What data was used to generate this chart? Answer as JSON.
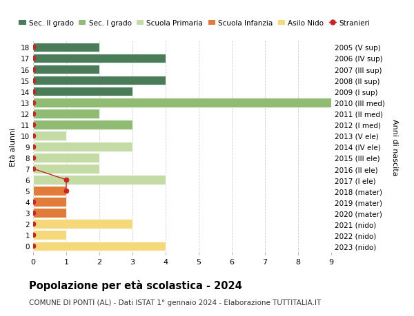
{
  "ages": [
    18,
    17,
    16,
    15,
    14,
    13,
    12,
    11,
    10,
    9,
    8,
    7,
    6,
    5,
    4,
    3,
    2,
    1,
    0
  ],
  "years_labels": [
    "2005 (V sup)",
    "2006 (IV sup)",
    "2007 (III sup)",
    "2008 (II sup)",
    "2009 (I sup)",
    "2010 (III med)",
    "2011 (II med)",
    "2012 (I med)",
    "2013 (V ele)",
    "2014 (IV ele)",
    "2015 (III ele)",
    "2016 (II ele)",
    "2017 (I ele)",
    "2018 (mater)",
    "2019 (mater)",
    "2020 (mater)",
    "2021 (nido)",
    "2022 (nido)",
    "2023 (nido)"
  ],
  "bar_values": [
    2,
    4,
    2,
    4,
    3,
    9,
    2,
    3,
    1,
    3,
    2,
    2,
    4,
    1,
    1,
    1,
    3,
    1,
    4
  ],
  "bar_colors": [
    "#4a7c59",
    "#4a7c59",
    "#4a7c59",
    "#4a7c59",
    "#4a7c59",
    "#8fbc72",
    "#8fbc72",
    "#8fbc72",
    "#c5dba5",
    "#c5dba5",
    "#c5dba5",
    "#c5dba5",
    "#c5dba5",
    "#e07b39",
    "#e07b39",
    "#e07b39",
    "#f5d87a",
    "#f5d87a",
    "#f5d87a"
  ],
  "stranieri_line_ages": [
    7,
    6,
    5
  ],
  "stranieri_line_x": [
    0,
    1,
    1
  ],
  "dot_ages_zero": [
    18,
    17,
    16,
    15,
    14,
    13,
    12,
    11,
    10,
    9,
    8,
    7,
    4,
    3,
    2,
    1,
    0
  ],
  "dot_ages_one": [
    6,
    5
  ],
  "color_sec2": "#4a7c59",
  "color_sec1": "#8fbc72",
  "color_prim": "#c5dba5",
  "color_inf": "#e07b39",
  "color_nido": "#f5d87a",
  "color_stranieri": "#cc2222",
  "title": "Popolazione per età scolastica - 2024",
  "subtitle": "COMUNE DI PONTI (AL) - Dati ISTAT 1° gennaio 2024 - Elaborazione TUTTITALIA.IT",
  "ylabel_left": "Età alunni",
  "ylabel_right": "Anni di nascita",
  "xlim": [
    0,
    9
  ],
  "legend_labels": [
    "Sec. II grado",
    "Sec. I grado",
    "Scuola Primaria",
    "Scuola Infanzia",
    "Asilo Nido",
    "Stranieri"
  ],
  "legend_colors": [
    "#4a7c59",
    "#8fbc72",
    "#c5dba5",
    "#e07b39",
    "#f5d87a",
    "#cc2222"
  ],
  "bg_color": "#ffffff",
  "grid_color": "#cccccc"
}
